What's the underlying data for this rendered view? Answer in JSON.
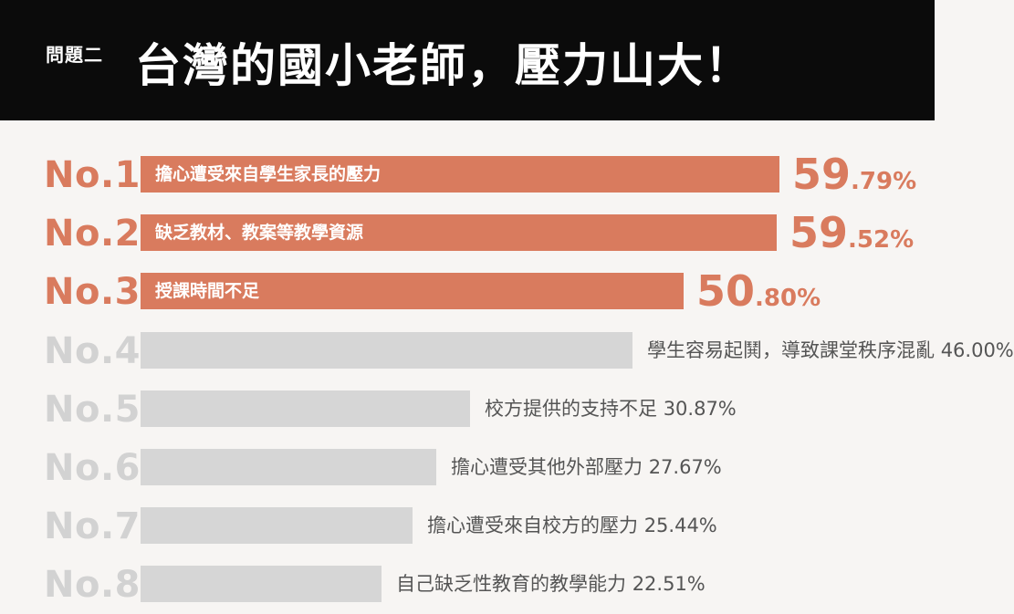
{
  "header": {
    "question_label": "問題二",
    "title": "台灣的國小老師，壓力山大！"
  },
  "colors": {
    "highlight": "#d97b5e",
    "muted_bar": "#d6d6d6",
    "muted_rank": "#d2d2d2",
    "header_bg": "#0b0b0b"
  },
  "chart_data": {
    "type": "bar",
    "orientation": "horizontal",
    "title": "台灣的國小老師，壓力山大！",
    "xlim": [
      0,
      100
    ],
    "items": [
      {
        "rank": "No.1",
        "label": "擔心遭受來自學生家長的壓力",
        "value": 59.79,
        "value_int": "59",
        "value_dec": ".79%",
        "highlight": true
      },
      {
        "rank": "No.2",
        "label": "缺乏教材、教案等教學資源",
        "value": 59.52,
        "value_int": "59",
        "value_dec": ".52%",
        "highlight": true
      },
      {
        "rank": "No.3",
        "label": "授課時間不足",
        "value": 50.8,
        "value_int": "50",
        "value_dec": ".80%",
        "highlight": true
      },
      {
        "rank": "No.4",
        "label": "學生容易起鬨，導致課堂秩序混亂",
        "value": 46.0,
        "value_text": "46.00%",
        "highlight": false
      },
      {
        "rank": "No.5",
        "label": "校方提供的支持不足",
        "value": 30.87,
        "value_text": "30.87%",
        "highlight": false
      },
      {
        "rank": "No.6",
        "label": "擔心遭受其他外部壓力",
        "value": 27.67,
        "value_text": "27.67%",
        "highlight": false
      },
      {
        "rank": "No.7",
        "label": "擔心遭受來自校方的壓力",
        "value": 25.44,
        "value_text": "25.44%",
        "highlight": false
      },
      {
        "rank": "No.8",
        "label": "自己缺乏性教育的教學能力",
        "value": 22.51,
        "value_text": "22.51%",
        "highlight": false
      }
    ]
  }
}
